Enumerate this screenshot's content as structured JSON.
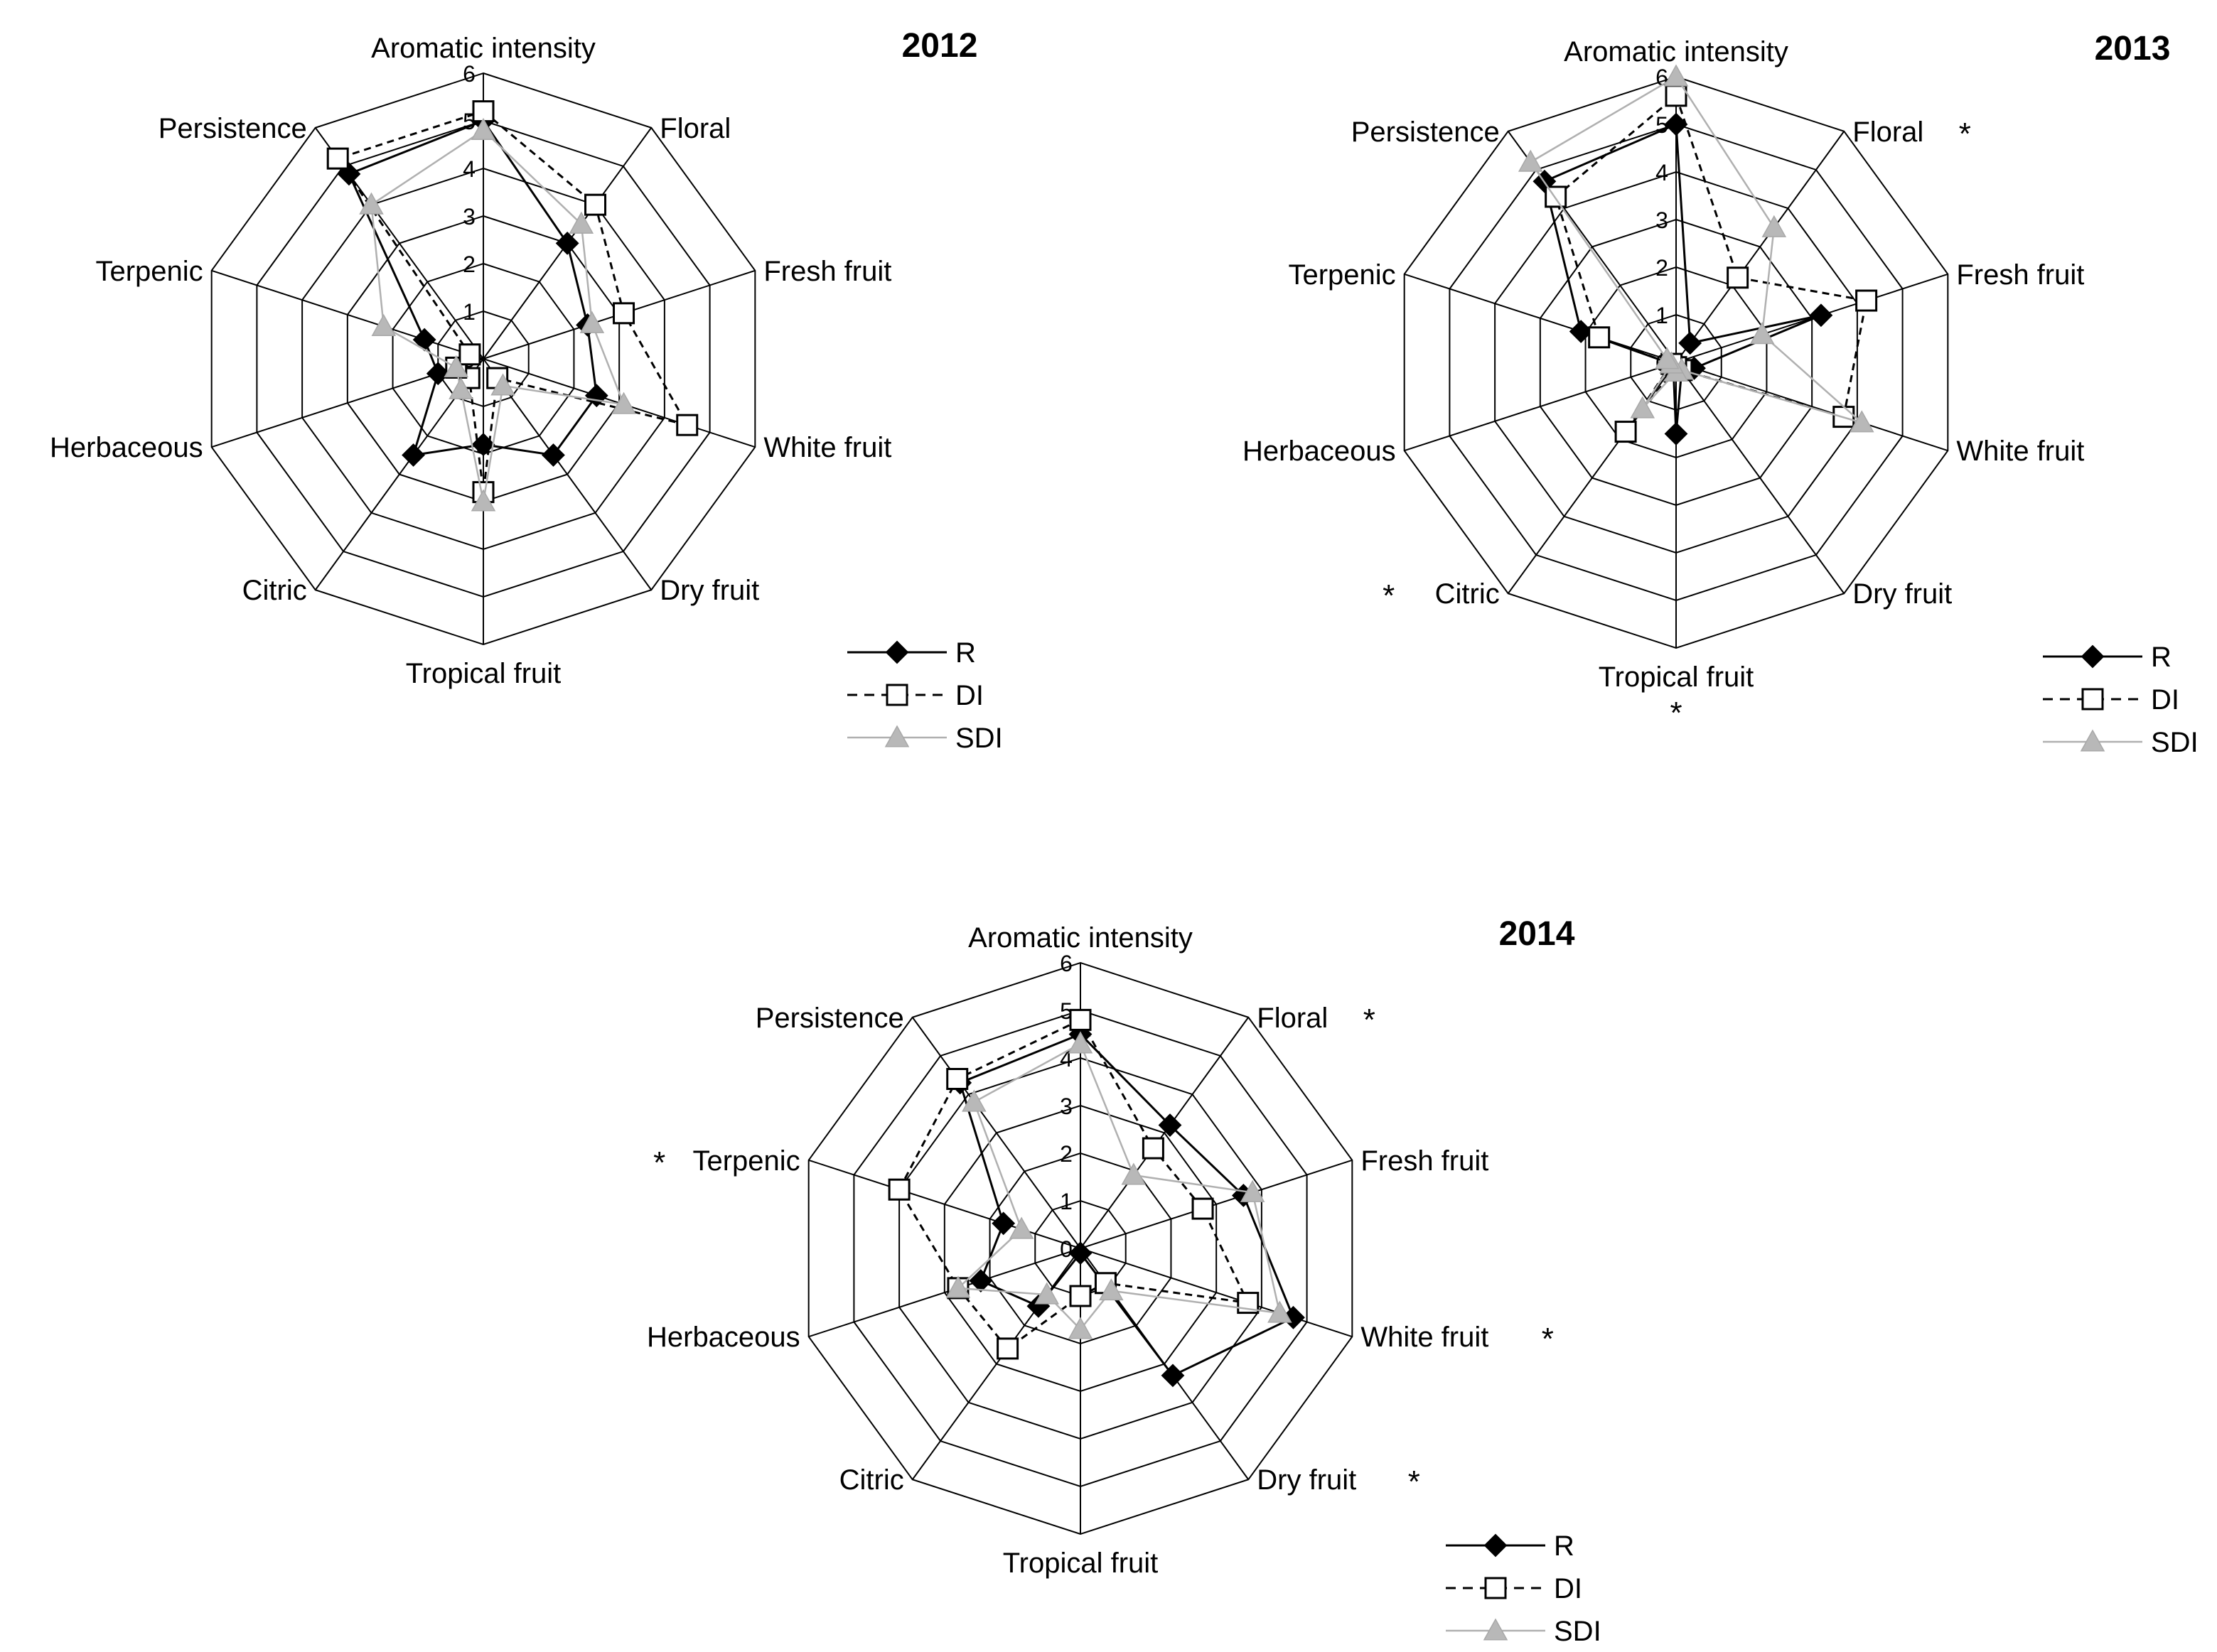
{
  "chart_data": [
    {
      "type": "radar",
      "title": "2012",
      "categories": [
        "Aromatic intensity",
        "Floral",
        "Fresh fruit",
        "White fruit",
        "Dry fruit",
        "Tropical fruit",
        "Citric",
        "Herbaceous",
        "Terpenic",
        "Persistence"
      ],
      "rlim": [
        0,
        6
      ],
      "ticks": [
        "0",
        "1",
        "2",
        "3",
        "4",
        "5",
        "6"
      ],
      "significant": [],
      "series": [
        {
          "name": "R",
          "values": [
            5.0,
            3.0,
            2.3,
            2.5,
            2.5,
            1.8,
            2.5,
            1.0,
            1.3,
            4.8
          ]
        },
        {
          "name": "DI",
          "values": [
            5.2,
            4.0,
            3.1,
            4.5,
            0.5,
            2.8,
            0.5,
            0.6,
            0.3,
            5.2
          ]
        },
        {
          "name": "SDI",
          "values": [
            4.8,
            3.5,
            2.4,
            3.1,
            0.7,
            3.0,
            0.8,
            0.6,
            2.2,
            4.0
          ]
        }
      ],
      "legend": "bottom-right"
    },
    {
      "type": "radar",
      "title": "2013",
      "categories": [
        "Aromatic intensity",
        "Floral",
        "Fresh fruit",
        "White fruit",
        "Dry fruit",
        "Tropical fruit",
        "Citric",
        "Herbaceous",
        "Terpenic",
        "Persistence"
      ],
      "rlim": [
        0,
        6
      ],
      "ticks": [
        "0",
        "1",
        "2",
        "3",
        "4",
        "5",
        "6"
      ],
      "significant": [
        "Floral",
        "Tropical fruit",
        "Citric"
      ],
      "series": [
        {
          "name": "R",
          "values": [
            5.0,
            0.5,
            3.2,
            0.4,
            0.2,
            1.5,
            0.1,
            0.1,
            2.1,
            4.7
          ]
        },
        {
          "name": "DI",
          "values": [
            5.6,
            2.2,
            4.2,
            3.7,
            0.2,
            0.1,
            1.8,
            0.1,
            1.7,
            4.3
          ]
        },
        {
          "name": "SDI",
          "values": [
            6.0,
            3.5,
            1.9,
            4.1,
            0.2,
            0.2,
            1.2,
            0.1,
            0.2,
            5.2
          ]
        }
      ],
      "legend": "bottom-right"
    },
    {
      "type": "radar",
      "title": "2014",
      "categories": [
        "Aromatic intensity",
        "Floral",
        "Fresh fruit",
        "White fruit",
        "Dry fruit",
        "Tropical fruit",
        "Citric",
        "Herbaceous",
        "Terpenic",
        "Persistence"
      ],
      "rlim": [
        0,
        6
      ],
      "ticks": [
        "0",
        "1",
        "2",
        "3",
        "4",
        "5",
        "6"
      ],
      "significant": [
        "Floral",
        "White fruit",
        "Dry fruit",
        "Terpenic"
      ],
      "series": [
        {
          "name": "R",
          "values": [
            4.5,
            3.2,
            3.6,
            4.7,
            3.3,
            0.1,
            1.5,
            2.2,
            1.7,
            4.3
          ]
        },
        {
          "name": "DI",
          "values": [
            4.8,
            2.6,
            2.7,
            3.7,
            0.9,
            1.0,
            2.6,
            2.7,
            4.0,
            4.4
          ]
        },
        {
          "name": "SDI",
          "values": [
            4.3,
            1.9,
            3.8,
            4.4,
            1.1,
            1.7,
            1.2,
            2.7,
            1.3,
            3.8
          ]
        }
      ],
      "legend": "bottom-right"
    }
  ],
  "legend_labels": [
    "R",
    "DI",
    "SDI"
  ],
  "significance_marker": "*",
  "colors": {
    "R": "#000000",
    "DI": "#000000",
    "SDI": "#b0b0b0",
    "grid": "#000000"
  }
}
